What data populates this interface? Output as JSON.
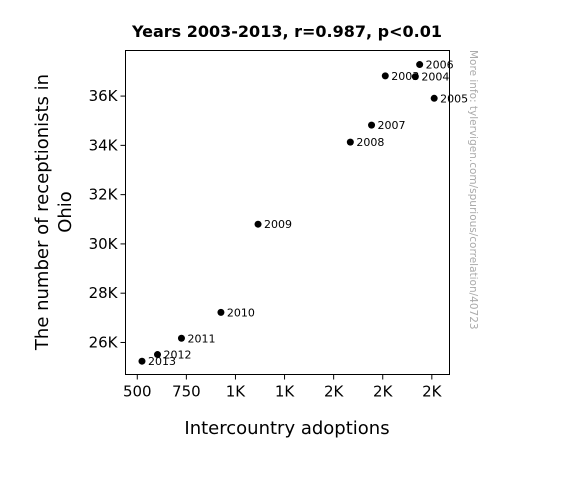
{
  "chart_data": {
    "type": "scatter",
    "title": "Years 2003-2013, r=0.987, p<0.01",
    "xlabel": "Intercountry adoptions",
    "ylabel_lines": [
      "The number of receptionists in",
      "Ohio"
    ],
    "xlim": [
      440,
      2090
    ],
    "ylim": [
      24700,
      37850
    ],
    "x_ticks": [
      {
        "value": 500,
        "label": "500"
      },
      {
        "value": 750,
        "label": "750"
      },
      {
        "value": 1000,
        "label": "1K"
      },
      {
        "value": 1250,
        "label": "1K"
      },
      {
        "value": 1500,
        "label": "2K"
      },
      {
        "value": 1750,
        "label": "2K"
      },
      {
        "value": 2000,
        "label": "2K"
      }
    ],
    "y_ticks": [
      {
        "value": 26000,
        "label": "26K"
      },
      {
        "value": 28000,
        "label": "28K"
      },
      {
        "value": 30000,
        "label": "30K"
      },
      {
        "value": 32000,
        "label": "32K"
      },
      {
        "value": 34000,
        "label": "34K"
      },
      {
        "value": 36000,
        "label": "36K"
      }
    ],
    "points": [
      {
        "label": "2003",
        "x": 1763,
        "y": 36820
      },
      {
        "label": "2004",
        "x": 1916,
        "y": 36790
      },
      {
        "label": "2005",
        "x": 2012,
        "y": 35910
      },
      {
        "label": "2006",
        "x": 1938,
        "y": 37280
      },
      {
        "label": "2007",
        "x": 1693,
        "y": 34820
      },
      {
        "label": "2008",
        "x": 1585,
        "y": 34130
      },
      {
        "label": "2009",
        "x": 1115,
        "y": 30800
      },
      {
        "label": "2010",
        "x": 926,
        "y": 27220
      },
      {
        "label": "2011",
        "x": 725,
        "y": 26170
      },
      {
        "label": "2012",
        "x": 603,
        "y": 25510
      },
      {
        "label": "2013",
        "x": 524,
        "y": 25240
      }
    ],
    "marker_color": "#000000",
    "grid": false,
    "side_note": "More info: tylervigen.com/spurious/correlation/40723"
  }
}
